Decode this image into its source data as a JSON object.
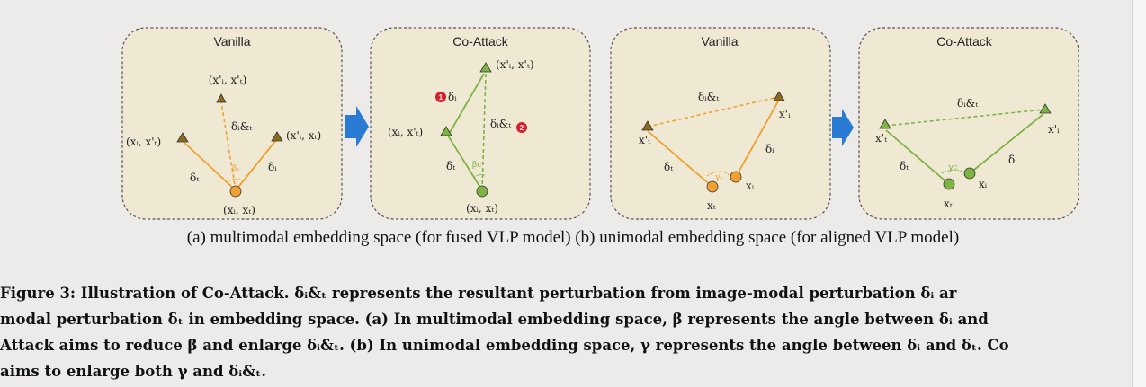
{
  "figure": {
    "panels": [
      {
        "title": "Vanilla",
        "color": "#f0a030",
        "labels": {
          "top": "(x'ᵢ, x'ₜ)",
          "left": "(xᵢ, x'ₜ)",
          "right": "(x'ᵢ, xₜ)",
          "bottom": "(xᵢ, xₜ)",
          "delta_iat": "δᵢ&ₜ",
          "delta_t": "δₜ",
          "delta_i": "δᵢ",
          "angle": "βᵥ"
        }
      },
      {
        "title": "Co-Attack",
        "color": "#7cb342",
        "labels": {
          "top": "(x'ᵢ, x'ₜ)",
          "left": "(xᵢ, x'ₜ)",
          "bottom": "(xᵢ, xₜ)",
          "delta_iat": "δᵢ&ₜ",
          "delta_t": "δₜ",
          "delta_i": "δᵢ",
          "angle": "βc",
          "badge1": "1",
          "badge2": "2"
        }
      },
      {
        "title": "Vanilla",
        "color": "#f0a030",
        "labels": {
          "xpt": "x'ₜ",
          "xpi": "x'ᵢ",
          "xi": "xᵢ",
          "xt": "xₜ",
          "delta_iat": "δᵢ&ₜ",
          "delta_t": "δₜ",
          "delta_i": "δᵢ",
          "angle": "γᵥ"
        }
      },
      {
        "title": "Co-Attack",
        "color": "#7cb342",
        "labels": {
          "xpt": "x'ₜ",
          "xpi": "x'ᵢ",
          "xi": "xᵢ",
          "xt": "xₜ",
          "delta_iat": "δᵢ&ₜ",
          "delta_t": "δₜ",
          "delta_i": "δᵢ",
          "angle": "γc"
        }
      }
    ],
    "arrow_color": "#2a7bd4",
    "badge_color": "#d9202a",
    "subcaption": "(a) multimodal embedding space (for fused VLP model) (b) unimodal embedding space (for aligned VLP model)"
  },
  "caption": {
    "lines": [
      "Figure 3: Illustration of Co-Attack. δᵢ&ₜ represents the resultant perturbation from image-modal perturbation δᵢ ar",
      "modal perturbation δₜ in embedding space. (a) In multimodal embedding space, β represents the angle between δᵢ and",
      "Attack aims to reduce β and enlarge δᵢ&ₜ. (b) In unimodal embedding space, γ represents the angle between δᵢ and δₜ. Co",
      "aims to enlarge both γ and δᵢ&ₜ."
    ]
  }
}
